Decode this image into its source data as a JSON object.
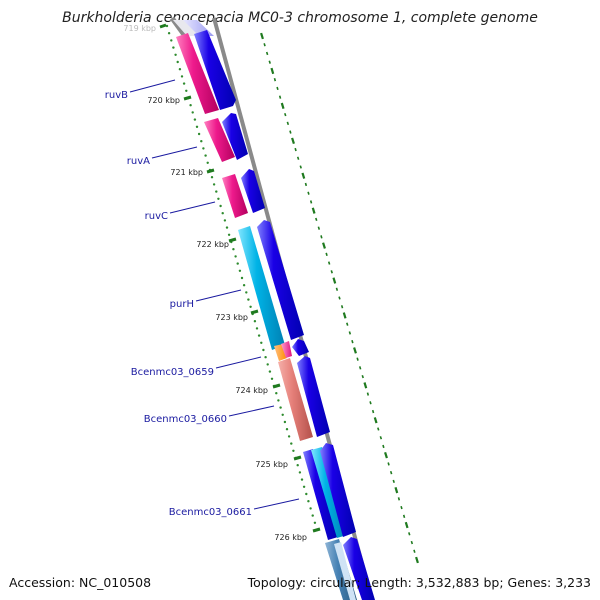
{
  "header": {
    "title": "Burkholderia cenocepacia MC0-3 chromosome 1, complete genome"
  },
  "footer": {
    "accession": "Accession: NC_010508",
    "topology": "Topology: circular; Length: 3,532,883 bp; Genes: 3,233"
  },
  "ticks": [
    {
      "label": "719 kbp",
      "faded": true
    },
    {
      "label": "720 kbp"
    },
    {
      "label": "721 kbp"
    },
    {
      "label": "722 kbp"
    },
    {
      "label": "723 kbp"
    },
    {
      "label": "724 kbp"
    },
    {
      "label": "725 kbp"
    },
    {
      "label": "726 kbp"
    }
  ],
  "gene_labels": [
    "ruvB",
    "ruvA",
    "ruvC",
    "purH",
    "Bcenmc03_0659",
    "Bcenmc03_0660",
    "Bcenmc03_0661"
  ],
  "colors": {
    "cds_strand": "#1a00e6",
    "magenta": "#ee1a8c",
    "cyan": "#00b3e6",
    "salmon": "#e6807a",
    "orange": "#ff8c00",
    "steel": "#4682b4",
    "backbone": "#888888",
    "tick": "#1f7a1f",
    "label": "#1a1aa0"
  }
}
